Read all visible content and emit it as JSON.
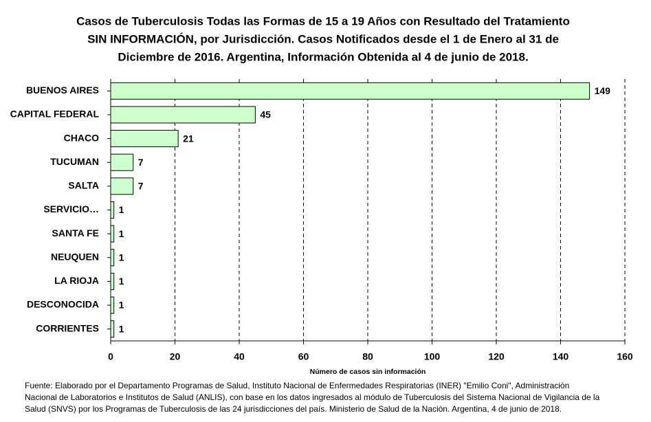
{
  "chart_data": {
    "type": "bar",
    "orientation": "horizontal",
    "title": [
      "Casos de Tuberculosis Todas las Formas de 15 a 19 Años con Resultado del Tratamiento",
      "SIN INFORMACIÓN, por Jurisdicción. Casos Notificados desde el 1 de Enero al 31 de",
      "Diciembre de 2016. Argentina, Información Obtenida al 4 de junio de 2018."
    ],
    "categories": [
      "BUENOS AIRES",
      "CAPITAL FEDERAL",
      "CHACO",
      "TUCUMAN",
      "SALTA",
      "SERVICIO…",
      "SANTA FE",
      "NEUQUEN",
      "LA RIOJA",
      "DESCONOCIDA",
      "CORRIENTES"
    ],
    "values": [
      149,
      45,
      21,
      7,
      7,
      1,
      1,
      1,
      1,
      1,
      1
    ],
    "color": "#ccffcc",
    "xlim": [
      0,
      160
    ],
    "xticks": [
      0,
      20,
      40,
      60,
      80,
      100,
      120,
      140,
      160
    ],
    "x_label": "Número de casos sin información",
    "grid": true,
    "source": [
      "Fuente: Elaborado por el Departamento Programas de Salud, Instituto Nacional de Enfermedades Respiratorias (INER) \"Emilio Coni\", Administración",
      "Nacional de Laboratorios e Institutos de Salud (ANLIS), con base en los datos ingresados al módulo de Tuberculosis del Sistema Nacional de Vigilancia de la",
      "Salud (SNVS) por los Programas de Tuberculosis de las 24 jurisdicciones del país. Ministerio de Salud de la Nación. Argentina, 4 de junio de 2018."
    ]
  }
}
